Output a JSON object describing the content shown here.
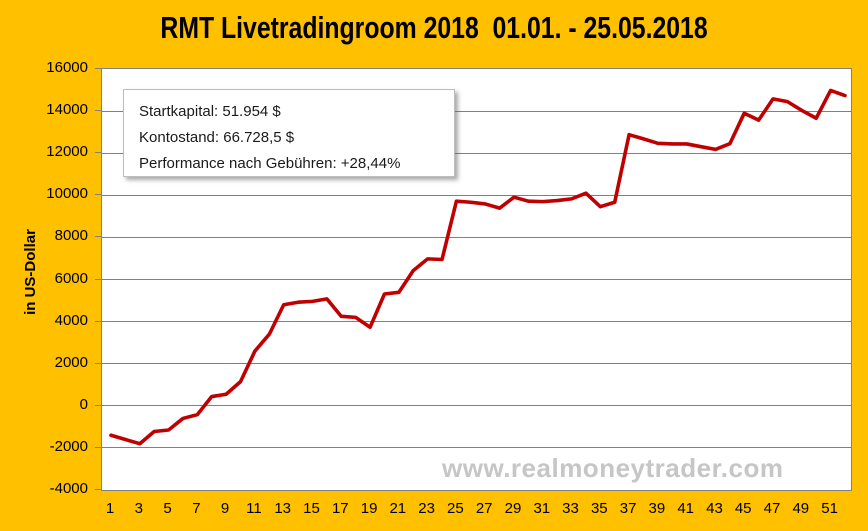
{
  "title": "RMT Livetradingroom 2018  01.01. - 25.05.2018",
  "watermark": {
    "text": "www.realmoneytrader.com"
  },
  "info_box": {
    "lines": [
      "Startkapital: 51.954 $",
      "Kontostand: 66.728,5 $",
      "Performance nach Gebühren: +28,44%"
    ]
  },
  "colors": {
    "background": "#FFC000",
    "line": "#C00000",
    "grid": "#808080",
    "plot_border": "#808080",
    "watermark": "#C6C6C6",
    "text": "#000000"
  },
  "chart_data": {
    "type": "line",
    "title": "RMT Livetradingroom 2018  01.01. - 25.05.2018",
    "xlabel": "",
    "ylabel": "in US-Dollar",
    "ylim": [
      -4000,
      16000
    ],
    "ytick_step": 2000,
    "yticks": [
      16000,
      14000,
      12000,
      10000,
      8000,
      6000,
      4000,
      2000,
      0,
      -2000,
      -4000
    ],
    "xticks": [
      1,
      3,
      5,
      7,
      9,
      11,
      13,
      15,
      17,
      19,
      21,
      23,
      25,
      27,
      29,
      31,
      33,
      35,
      37,
      39,
      41,
      43,
      45,
      47,
      49,
      51
    ],
    "grid": true,
    "legend": false,
    "x": [
      1,
      2,
      3,
      4,
      5,
      6,
      7,
      8,
      9,
      10,
      11,
      12,
      13,
      14,
      15,
      16,
      17,
      18,
      19,
      20,
      21,
      22,
      23,
      24,
      25,
      26,
      27,
      28,
      29,
      30,
      31,
      32,
      33,
      34,
      35,
      36,
      37,
      38,
      39,
      40,
      41,
      42,
      43,
      44,
      45,
      46,
      47,
      48,
      49,
      50,
      51,
      52
    ],
    "values": [
      -1400,
      -1600,
      -1800,
      -1220,
      -1150,
      -600,
      -420,
      440,
      550,
      1150,
      2600,
      3400,
      4800,
      4920,
      4960,
      5080,
      4250,
      4200,
      3730,
      5310,
      5390,
      6420,
      6980,
      6950,
      9720,
      9670,
      9590,
      9390,
      9910,
      9720,
      9700,
      9750,
      9830,
      10100,
      9460,
      9670,
      12880,
      12680,
      12470,
      12440,
      12440,
      12310,
      12180,
      12450,
      13900,
      13570,
      14580,
      14450,
      14030,
      13660,
      14980,
      14740
    ]
  }
}
